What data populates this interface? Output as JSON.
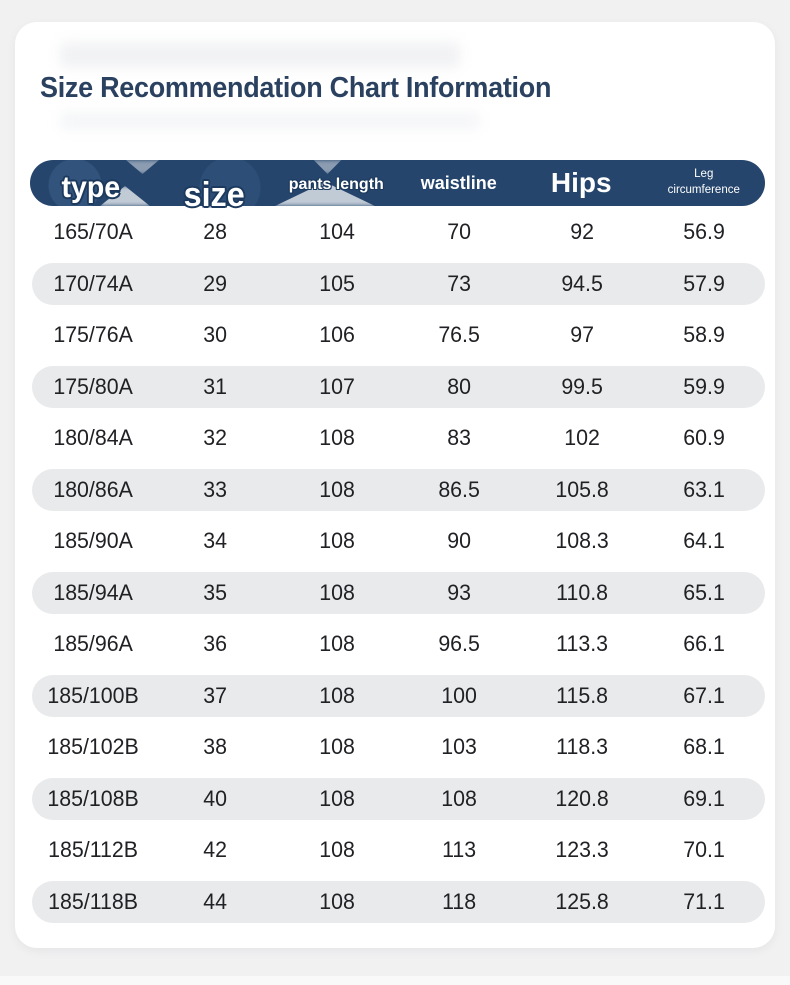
{
  "page": {
    "title": "Size Recommendation Chart Information"
  },
  "table": {
    "columns": [
      {
        "key": "type",
        "label": "type"
      },
      {
        "key": "size",
        "label": "size"
      },
      {
        "key": "pants_length",
        "label": "pants length"
      },
      {
        "key": "waistline",
        "label": "waistline"
      },
      {
        "key": "hips",
        "label": "Hips"
      },
      {
        "key": "leg_circumference",
        "label": "Leg circumference"
      }
    ],
    "rows": [
      [
        "165/70A",
        "28",
        "104",
        "70",
        "92",
        "56.9"
      ],
      [
        "170/74A",
        "29",
        "105",
        "73",
        "94.5",
        "57.9"
      ],
      [
        "175/76A",
        "30",
        "106",
        "76.5",
        "97",
        "58.9"
      ],
      [
        "175/80A",
        "31",
        "107",
        "80",
        "99.5",
        "59.9"
      ],
      [
        "180/84A",
        "32",
        "108",
        "83",
        "102",
        "60.9"
      ],
      [
        "180/86A",
        "33",
        "108",
        "86.5",
        "105.8",
        "63.1"
      ],
      [
        "185/90A",
        "34",
        "108",
        "90",
        "108.3",
        "64.1"
      ],
      [
        "185/94A",
        "35",
        "108",
        "93",
        "110.8",
        "65.1"
      ],
      [
        "185/96A",
        "36",
        "108",
        "96.5",
        "113.3",
        "66.1"
      ],
      [
        "185/100B",
        "37",
        "108",
        "100",
        "115.8",
        "67.1"
      ],
      [
        "185/102B",
        "38",
        "108",
        "103",
        "118.3",
        "68.1"
      ],
      [
        "185/108B",
        "40",
        "108",
        "108",
        "120.8",
        "69.1"
      ],
      [
        "185/112B",
        "42",
        "108",
        "113",
        "123.3",
        "70.1"
      ],
      [
        "185/118B",
        "44",
        "108",
        "118",
        "125.8",
        "71.1"
      ]
    ]
  },
  "colors": {
    "background": "#f1f1f2",
    "card": "#ffffff",
    "header_bar": "#25456c",
    "header_text": "#ffffff",
    "title_text": "#2b4160",
    "row_alt": "#e9eaec",
    "body_text": "#202124"
  }
}
